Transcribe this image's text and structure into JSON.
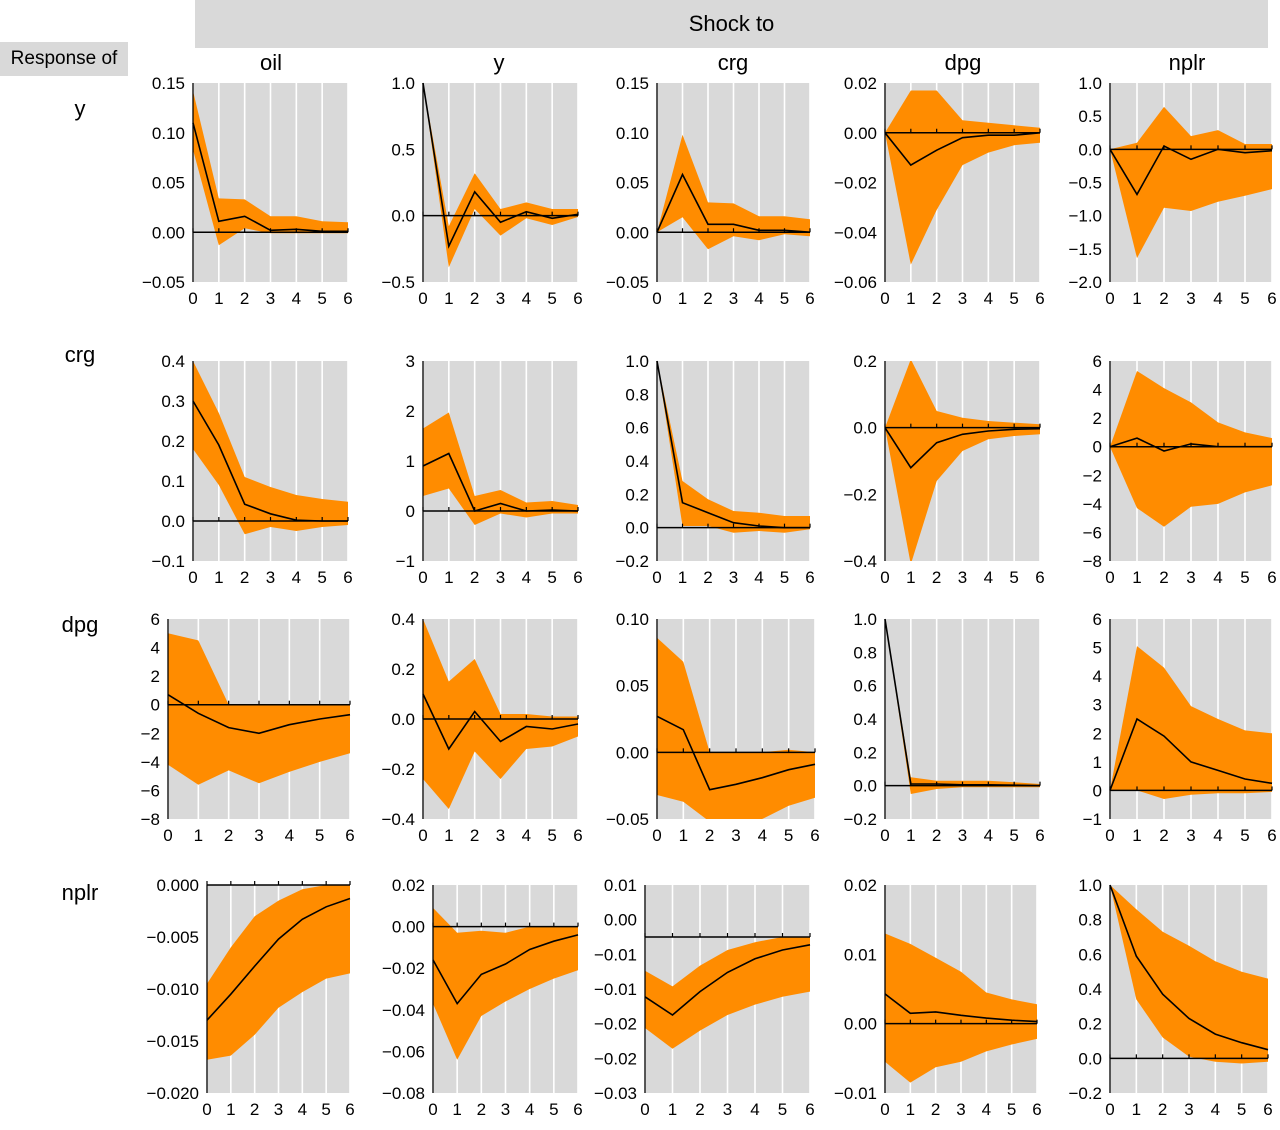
{
  "header": {
    "shock_to": "Shock to",
    "response_of": "Response of",
    "columns": [
      "oil",
      "y",
      "crg",
      "dpg",
      "nplr"
    ],
    "rows": [
      "y",
      "crg",
      "dpg",
      "nplr"
    ]
  },
  "colors": {
    "band": "#ff8c00",
    "panel_bg": "#d9d9d9",
    "grid": "#ffffff",
    "line": "#000000"
  },
  "chart_data": [
    {
      "type": "area",
      "row": "y",
      "column": "oil",
      "x": [
        0,
        1,
        2,
        3,
        4,
        5,
        6
      ],
      "ylim": [
        -0.05,
        0.15
      ],
      "yticks": [
        "0.15",
        "0.10",
        "0.05",
        "0.00",
        "−0.05"
      ],
      "xticks": [
        "0",
        "1",
        "2",
        "3",
        "4",
        "5",
        "6"
      ],
      "response": [
        0.11,
        0.011,
        0.016,
        0.002,
        0.003,
        0.001,
        0.001
      ],
      "upper": [
        0.142,
        0.034,
        0.033,
        0.016,
        0.016,
        0.011,
        0.01
      ],
      "lower": [
        0.083,
        -0.013,
        0.004,
        -0.001,
        -0.001,
        -0.001,
        -0.001
      ]
    },
    {
      "type": "area",
      "row": "y",
      "column": "y",
      "x": [
        0,
        1,
        2,
        3,
        4,
        5,
        6
      ],
      "ylim": [
        -0.5,
        1.0
      ],
      "yticks": [
        "1.0",
        "0.5",
        "0.0",
        "−0.5"
      ],
      "xticks": [
        "0",
        "1",
        "2",
        "3",
        "4",
        "5",
        "6"
      ],
      "response": [
        1.0,
        -0.23,
        0.18,
        -0.05,
        0.03,
        -0.02,
        0.01
      ],
      "upper": [
        1.0,
        -0.08,
        0.32,
        0.05,
        0.1,
        0.05,
        0.05
      ],
      "lower": [
        1.0,
        -0.39,
        0.05,
        -0.15,
        -0.02,
        -0.07,
        -0.01
      ]
    },
    {
      "type": "area",
      "row": "y",
      "column": "crg",
      "x": [
        0,
        1,
        2,
        3,
        4,
        5,
        6
      ],
      "ylim": [
        -0.05,
        0.15
      ],
      "yticks": [
        "0.15",
        "0.10",
        "0.05",
        "0.00",
        "−0.05"
      ],
      "xticks": [
        "0",
        "1",
        "2",
        "3",
        "4",
        "5",
        "6"
      ],
      "response": [
        0.0,
        0.058,
        0.008,
        0.008,
        0.002,
        0.002,
        0.0
      ],
      "upper": [
        0.0,
        0.098,
        0.03,
        0.029,
        0.016,
        0.016,
        0.013
      ],
      "lower": [
        0.0,
        0.015,
        -0.017,
        -0.004,
        -0.008,
        -0.002,
        -0.004
      ]
    },
    {
      "type": "area",
      "row": "y",
      "column": "dpg",
      "x": [
        0,
        1,
        2,
        3,
        4,
        5,
        6
      ],
      "ylim": [
        -0.06,
        0.02
      ],
      "yticks": [
        "0.02",
        "0.00",
        "−0.02",
        "−0.04",
        "−0.06"
      ],
      "xticks": [
        "0",
        "1",
        "2",
        "3",
        "4",
        "5",
        "6"
      ],
      "response": [
        0.0,
        -0.013,
        -0.007,
        -0.002,
        -0.001,
        -0.001,
        0.0
      ],
      "upper": [
        0.0,
        0.017,
        0.017,
        0.005,
        0.004,
        0.003,
        0.002
      ],
      "lower": [
        0.0,
        -0.053,
        -0.031,
        -0.013,
        -0.008,
        -0.005,
        -0.004
      ]
    },
    {
      "type": "area",
      "row": "y",
      "column": "nplr",
      "x": [
        0,
        1,
        2,
        3,
        4,
        5,
        6
      ],
      "ylim": [
        -2.0,
        1.0
      ],
      "yticks": [
        "1.0",
        "0.5",
        "0.0",
        "−0.5",
        "−1.0",
        "−1.5",
        "−2.0"
      ],
      "xticks": [
        "0",
        "1",
        "2",
        "3",
        "4",
        "5",
        "6"
      ],
      "response": [
        0.0,
        -0.68,
        0.05,
        -0.15,
        0.0,
        -0.05,
        -0.02
      ],
      "upper": [
        0.0,
        0.1,
        0.64,
        0.2,
        0.29,
        0.08,
        0.08
      ],
      "lower": [
        0.0,
        -1.64,
        -0.88,
        -0.93,
        -0.79,
        -0.7,
        -0.6
      ]
    },
    {
      "type": "area",
      "row": "crg",
      "column": "oil",
      "x": [
        0,
        1,
        2,
        3,
        4,
        5,
        6
      ],
      "ylim": [
        -0.1,
        0.4
      ],
      "yticks": [
        "0.4",
        "0.3",
        "0.2",
        "0.1",
        "0.0",
        "−0.1"
      ],
      "xticks": [
        "0",
        "1",
        "2",
        "3",
        "4",
        "5",
        "6"
      ],
      "response": [
        0.3,
        0.19,
        0.042,
        0.018,
        0.002,
        0.0,
        0.0
      ],
      "upper": [
        0.4,
        0.27,
        0.11,
        0.085,
        0.065,
        0.055,
        0.048
      ],
      "lower": [
        0.18,
        0.09,
        -0.033,
        -0.015,
        -0.025,
        -0.015,
        -0.01
      ]
    },
    {
      "type": "area",
      "row": "crg",
      "column": "y",
      "x": [
        0,
        1,
        2,
        3,
        4,
        5,
        6
      ],
      "ylim": [
        -1,
        3
      ],
      "yticks": [
        "3",
        "2",
        "1",
        "0",
        "−1"
      ],
      "xticks": [
        "0",
        "1",
        "2",
        "3",
        "4",
        "5",
        "6"
      ],
      "response": [
        0.9,
        1.15,
        0.0,
        0.15,
        0.0,
        0.02,
        0.0
      ],
      "upper": [
        1.65,
        1.97,
        0.3,
        0.42,
        0.17,
        0.2,
        0.12
      ],
      "lower": [
        0.3,
        0.45,
        -0.28,
        -0.05,
        -0.13,
        -0.05,
        -0.05
      ]
    },
    {
      "type": "area",
      "row": "crg",
      "column": "crg",
      "x": [
        0,
        1,
        2,
        3,
        4,
        5,
        6
      ],
      "ylim": [
        -0.2,
        1.0
      ],
      "yticks": [
        "1.0",
        "0.8",
        "0.6",
        "0.4",
        "0.2",
        "0.0",
        "−0.2"
      ],
      "xticks": [
        "0",
        "1",
        "2",
        "3",
        "4",
        "5",
        "6"
      ],
      "response": [
        1.0,
        0.15,
        0.09,
        0.03,
        0.01,
        0.0,
        0.0
      ],
      "upper": [
        1.0,
        0.28,
        0.17,
        0.1,
        0.09,
        0.07,
        0.07
      ],
      "lower": [
        1.0,
        0.01,
        0.01,
        -0.03,
        -0.02,
        -0.03,
        -0.01
      ]
    },
    {
      "type": "area",
      "row": "crg",
      "column": "dpg",
      "x": [
        0,
        1,
        2,
        3,
        4,
        5,
        6
      ],
      "ylim": [
        -0.4,
        0.2
      ],
      "yticks": [
        "0.2",
        "0.0",
        "−0.2",
        "−0.4"
      ],
      "xticks": [
        "0",
        "1",
        "2",
        "3",
        "4",
        "5",
        "6"
      ],
      "response": [
        0.0,
        -0.12,
        -0.045,
        -0.02,
        -0.01,
        -0.005,
        -0.003
      ],
      "upper": [
        0.0,
        0.205,
        0.05,
        0.03,
        0.02,
        0.015,
        0.01
      ],
      "lower": [
        0.0,
        -0.41,
        -0.16,
        -0.07,
        -0.035,
        -0.025,
        -0.02
      ]
    },
    {
      "type": "area",
      "row": "crg",
      "column": "nplr",
      "x": [
        0,
        1,
        2,
        3,
        4,
        5,
        6
      ],
      "ylim": [
        -8,
        6
      ],
      "yticks": [
        "6",
        "4",
        "2",
        "0",
        "−2",
        "−4",
        "−6",
        "−8"
      ],
      "xticks": [
        "0",
        "1",
        "2",
        "3",
        "4",
        "5",
        "6"
      ],
      "response": [
        0.0,
        0.6,
        -0.3,
        0.2,
        0.0,
        0.0,
        0.0
      ],
      "upper": [
        0.0,
        5.3,
        4.1,
        3.1,
        1.7,
        1.0,
        0.6
      ],
      "lower": [
        0.0,
        -4.3,
        -5.6,
        -4.2,
        -4.0,
        -3.2,
        -2.7
      ]
    },
    {
      "type": "area",
      "row": "dpg",
      "column": "oil",
      "x": [
        0,
        1,
        2,
        3,
        4,
        5,
        6
      ],
      "ylim": [
        -8,
        6
      ],
      "yticks": [
        "6",
        "4",
        "2",
        "0",
        "−2",
        "−4",
        "−6",
        "−8"
      ],
      "xticks": [
        "0",
        "1",
        "2",
        "3",
        "4",
        "5",
        "6"
      ],
      "response": [
        0.7,
        -0.6,
        -1.6,
        -2.0,
        -1.4,
        -1.0,
        -0.7
      ],
      "upper": [
        5.0,
        4.5,
        0.0,
        0.0,
        0.0,
        0.0,
        0.0
      ],
      "lower": [
        -4.2,
        -5.6,
        -4.6,
        -5.5,
        -4.7,
        -4.0,
        -3.4
      ]
    },
    {
      "type": "area",
      "row": "dpg",
      "column": "y",
      "x": [
        0,
        1,
        2,
        3,
        4,
        5,
        6
      ],
      "ylim": [
        -0.4,
        0.4
      ],
      "yticks": [
        "0.4",
        "0.2",
        "0.0",
        "−0.2",
        "−0.4"
      ],
      "xticks": [
        "0",
        "1",
        "2",
        "3",
        "4",
        "5",
        "6"
      ],
      "response": [
        0.1,
        -0.12,
        0.03,
        -0.09,
        -0.03,
        -0.04,
        -0.02
      ],
      "upper": [
        0.4,
        0.15,
        0.24,
        0.02,
        0.02,
        0.01,
        0.01
      ],
      "lower": [
        -0.24,
        -0.36,
        -0.13,
        -0.24,
        -0.12,
        -0.11,
        -0.07
      ]
    },
    {
      "type": "area",
      "row": "dpg",
      "column": "crg",
      "x": [
        0,
        1,
        2,
        3,
        4,
        5,
        6
      ],
      "ylim": [
        -0.05,
        0.1
      ],
      "yticks": [
        "0.10",
        "0.05",
        "0.00",
        "−0.05"
      ],
      "xticks": [
        "0",
        "1",
        "2",
        "3",
        "4",
        "5",
        "6"
      ],
      "response": [
        0.027,
        0.017,
        -0.028,
        -0.024,
        -0.019,
        -0.013,
        -0.009
      ],
      "upper": [
        0.086,
        0.068,
        0.0,
        0.0,
        0.0,
        0.002,
        0.0
      ],
      "lower": [
        -0.032,
        -0.037,
        -0.052,
        -0.06,
        -0.05,
        -0.04,
        -0.034
      ]
    },
    {
      "type": "area",
      "row": "dpg",
      "column": "dpg",
      "x": [
        0,
        1,
        2,
        3,
        4,
        5,
        6
      ],
      "ylim": [
        -0.2,
        1.0
      ],
      "yticks": [
        "1.0",
        "0.8",
        "0.6",
        "0.4",
        "0.2",
        "0.0",
        "−0.2"
      ],
      "xticks": [
        "0",
        "1",
        "2",
        "3",
        "4",
        "5",
        "6"
      ],
      "response": [
        1.0,
        0.01,
        0.01,
        0.005,
        0.005,
        0.003,
        0.0
      ],
      "upper": [
        1.0,
        0.05,
        0.03,
        0.03,
        0.03,
        0.02,
        0.01
      ],
      "lower": [
        1.0,
        -0.05,
        -0.02,
        -0.01,
        -0.01,
        -0.01,
        -0.01
      ]
    },
    {
      "type": "area",
      "row": "dpg",
      "column": "nplr",
      "x": [
        0,
        1,
        2,
        3,
        4,
        5,
        6
      ],
      "ylim": [
        -1,
        6
      ],
      "yticks": [
        "6",
        "5",
        "4",
        "3",
        "2",
        "1",
        "0",
        "−1"
      ],
      "xticks": [
        "0",
        "1",
        "2",
        "3",
        "4",
        "5",
        "6"
      ],
      "response": [
        0.0,
        2.5,
        1.9,
        1.0,
        0.7,
        0.4,
        0.25
      ],
      "upper": [
        0.0,
        5.05,
        4.3,
        2.95,
        2.5,
        2.1,
        2.0
      ],
      "lower": [
        0.0,
        0.0,
        -0.3,
        -0.15,
        -0.1,
        -0.1,
        -0.05
      ]
    },
    {
      "type": "area",
      "row": "nplr",
      "column": "oil",
      "x": [
        0,
        1,
        2,
        3,
        4,
        5,
        6
      ],
      "ylim": [
        -0.02,
        0.0
      ],
      "yticks": [
        "0.000",
        "−0.005",
        "−0.010",
        "−0.015",
        "−0.020"
      ],
      "xticks": [
        "0",
        "1",
        "2",
        "3",
        "4",
        "5",
        "6"
      ],
      "response": [
        -0.013,
        -0.0105,
        -0.0078,
        -0.0052,
        -0.0033,
        -0.0021,
        -0.0013
      ],
      "upper": [
        -0.0095,
        -0.006,
        -0.003,
        -0.0015,
        -0.0004,
        0.0,
        0.0
      ],
      "lower": [
        -0.0168,
        -0.0164,
        -0.0144,
        -0.0118,
        -0.0103,
        -0.009,
        -0.0085
      ]
    },
    {
      "type": "area",
      "row": "nplr",
      "column": "y",
      "x": [
        0,
        1,
        2,
        3,
        4,
        5,
        6
      ],
      "ylim": [
        -0.08,
        0.02
      ],
      "yticks": [
        "0.02",
        "0.00",
        "−0.02",
        "−0.04",
        "−0.06",
        "−0.08"
      ],
      "xticks": [
        "0",
        "1",
        "2",
        "3",
        "4",
        "5",
        "6"
      ],
      "response": [
        -0.016,
        -0.037,
        -0.023,
        -0.018,
        -0.011,
        -0.007,
        -0.004
      ],
      "upper": [
        0.009,
        -0.003,
        -0.002,
        -0.003,
        0.0,
        0.0,
        0.0
      ],
      "lower": [
        -0.037,
        -0.064,
        -0.043,
        -0.036,
        -0.03,
        -0.025,
        -0.021
      ]
    },
    {
      "type": "area",
      "row": "nplr",
      "column": "crg",
      "x": [
        0,
        1,
        2,
        3,
        4,
        5,
        6
      ],
      "ylim": [
        -0.03,
        0.01
      ],
      "yticks": [
        "0.01",
        "0.00",
        "−0.01",
        "−0.01",
        "−0.02",
        "−0.02",
        "−0.03"
      ],
      "xticks": [
        "0",
        "1",
        "2",
        "3",
        "4",
        "5",
        "6"
      ],
      "response": [
        -0.0115,
        -0.015,
        -0.0105,
        -0.0068,
        -0.0042,
        -0.0025,
        -0.0015
      ],
      "upper": [
        -0.0065,
        -0.0095,
        -0.0055,
        -0.0025,
        -0.001,
        0.0,
        0.0
      ],
      "lower": [
        -0.0175,
        -0.0215,
        -0.018,
        -0.015,
        -0.013,
        -0.0115,
        -0.0105
      ]
    },
    {
      "type": "area",
      "row": "nplr",
      "column": "dpg",
      "x": [
        0,
        1,
        2,
        3,
        4,
        5,
        6
      ],
      "ylim": [
        -0.01,
        0.02
      ],
      "yticks": [
        "0.02",
        "0.01",
        "0.00",
        "−0.01"
      ],
      "xticks": [
        "0",
        "1",
        "2",
        "3",
        "4",
        "5",
        "6"
      ],
      "response": [
        0.0043,
        0.0015,
        0.0017,
        0.0012,
        0.0008,
        0.0005,
        0.0003
      ],
      "upper": [
        0.013,
        0.0115,
        0.0095,
        0.0075,
        0.0045,
        0.0035,
        0.0028
      ],
      "lower": [
        -0.0055,
        -0.0085,
        -0.0063,
        -0.0055,
        -0.004,
        -0.003,
        -0.0022
      ]
    },
    {
      "type": "area",
      "row": "nplr",
      "column": "nplr",
      "x": [
        0,
        1,
        2,
        3,
        4,
        5,
        6
      ],
      "ylim": [
        -0.2,
        1.0
      ],
      "yticks": [
        "1.0",
        "0.8",
        "0.6",
        "0.4",
        "0.2",
        "0.0",
        "−0.2"
      ],
      "xticks": [
        "0",
        "1",
        "2",
        "3",
        "4",
        "5",
        "6"
      ],
      "response": [
        1.0,
        0.59,
        0.37,
        0.23,
        0.14,
        0.09,
        0.05
      ],
      "upper": [
        1.0,
        0.86,
        0.73,
        0.65,
        0.56,
        0.5,
        0.46
      ],
      "lower": [
        1.0,
        0.34,
        0.12,
        0.01,
        -0.02,
        -0.03,
        -0.02
      ]
    }
  ]
}
